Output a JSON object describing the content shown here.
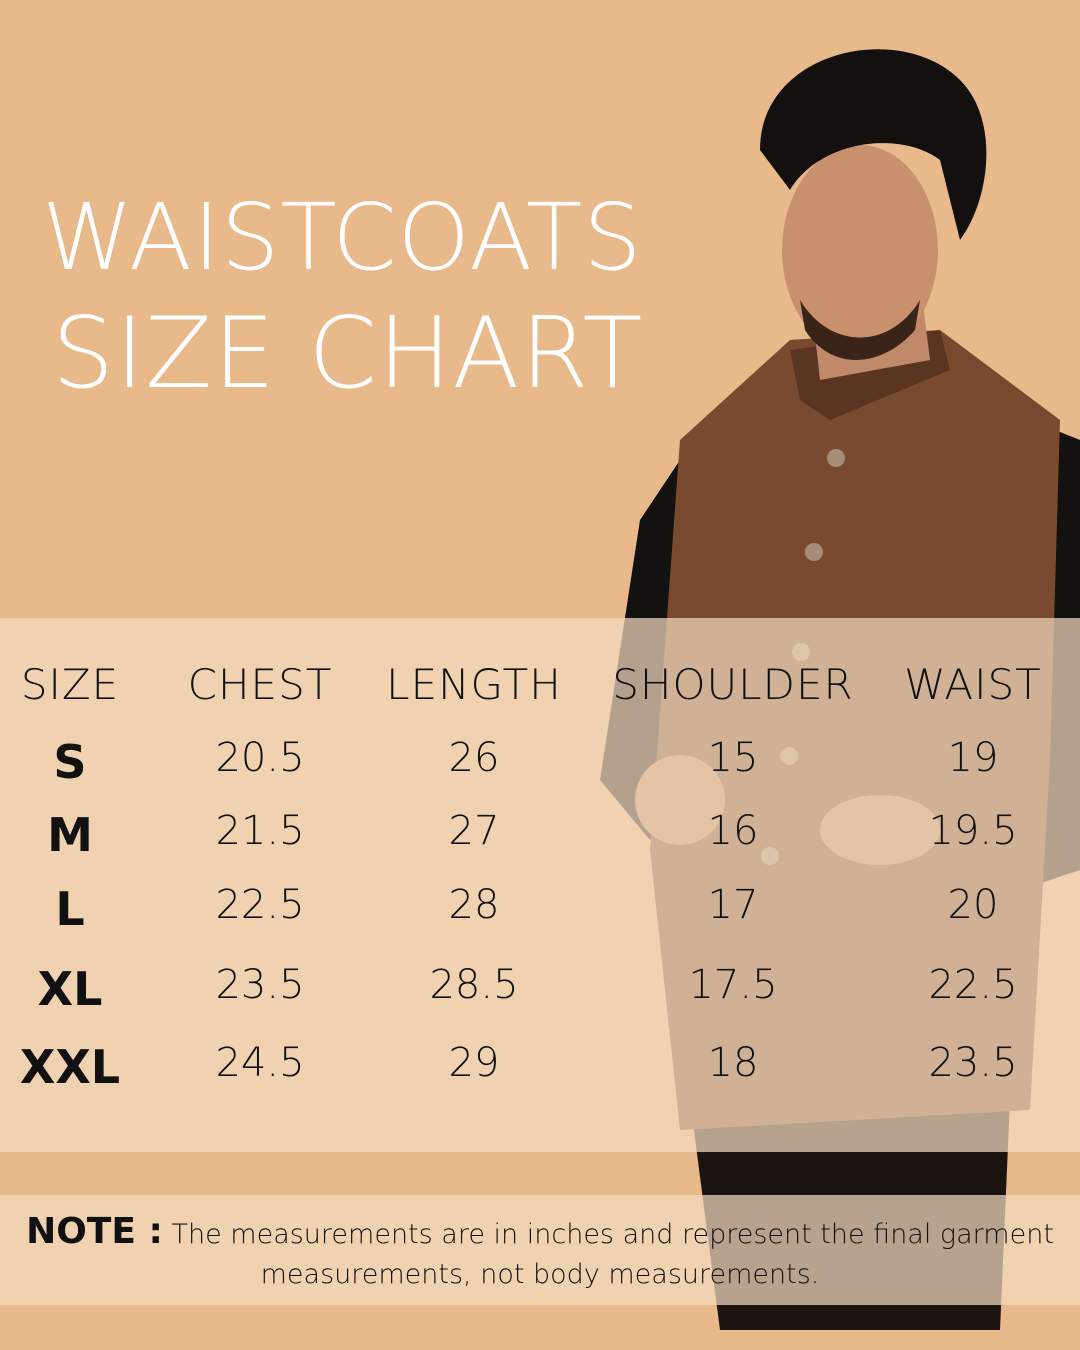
{
  "title": {
    "line1": "WAISTCOATS",
    "line2": "SIZE CHART"
  },
  "colors": {
    "background": "#E8B98B",
    "table_band": "#F3DABE",
    "text": "#111111",
    "title": "#FFFFFF"
  },
  "table": {
    "headers": [
      "SIZE",
      "CHEST",
      "LENGTH",
      "SHOULDER",
      "WAIST"
    ],
    "rows": [
      [
        "S",
        "20.5",
        "26",
        "15",
        "19"
      ],
      [
        "M",
        "21.5",
        "27",
        "16",
        "19.5"
      ],
      [
        "L",
        "22.5",
        "28",
        "17",
        "20"
      ],
      [
        "XL",
        "23.5",
        "28.5",
        "17.5",
        "22.5"
      ],
      [
        "XXL",
        "24.5",
        "29",
        "18",
        "23.5"
      ]
    ]
  },
  "note": {
    "label": "NOTE :",
    "line1": "The measurements are in inches and represent the final garment",
    "line2": "measurements, not body measurements."
  }
}
